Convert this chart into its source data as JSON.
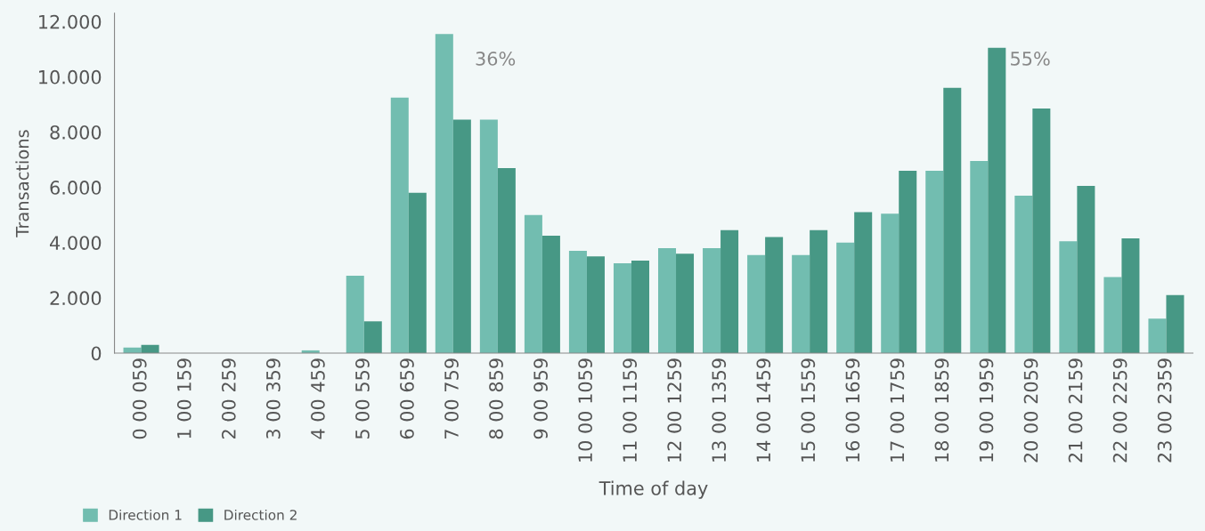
{
  "chart_data": {
    "type": "bar",
    "xlabel": "Time of day",
    "ylabel": "Transactions",
    "categories": [
      "0 00 059",
      "1 00 159",
      "2 00 259",
      "3 00 359",
      "4 00 459",
      "5 00 559",
      "6 00 659",
      "7 00 759",
      "8 00 859",
      "9 00 959",
      "10 00 1059",
      "11 00 1159",
      "12 00 1259",
      "13 00 1359",
      "14 00 1459",
      "15 00 1559",
      "16 00 1659",
      "17 00 1759",
      "18 00 1859",
      "19 00 1959",
      "20 00 2059",
      "21 00 2159",
      "22 00 2259",
      "23 00 2359"
    ],
    "series": [
      {
        "name": "Direction 1",
        "color": "#72bdb0",
        "values": [
          200,
          0,
          0,
          0,
          100,
          2800,
          9250,
          11550,
          8450,
          5000,
          3700,
          3250,
          3800,
          3800,
          3550,
          3550,
          4000,
          5050,
          6600,
          6950,
          5700,
          4050,
          2750,
          1250
        ]
      },
      {
        "name": "Direction 2",
        "color": "#479885",
        "values": [
          300,
          0,
          0,
          0,
          0,
          1150,
          5800,
          8450,
          6700,
          4250,
          3500,
          3350,
          3600,
          4450,
          4200,
          4450,
          5100,
          6600,
          9600,
          11050,
          8850,
          6050,
          4150,
          2100
        ]
      }
    ],
    "ylim": [
      0,
      12300
    ],
    "yticks": [
      {
        "value": 0,
        "label": "0"
      },
      {
        "value": 2000,
        "label": "2.000"
      },
      {
        "value": 4000,
        "label": "4.000"
      },
      {
        "value": 6000,
        "label": "6.000"
      },
      {
        "value": 8000,
        "label": "8.000"
      },
      {
        "value": 10000,
        "label": "10.000"
      },
      {
        "value": 12000,
        "label": "12.000"
      }
    ],
    "annotations": [
      {
        "text": "36%",
        "x": "7 00 759",
        "y": 10600
      },
      {
        "text": "55%",
        "x": "19 00 1959",
        "y": 10600
      }
    ],
    "legend": "bottom left",
    "grid": false
  }
}
